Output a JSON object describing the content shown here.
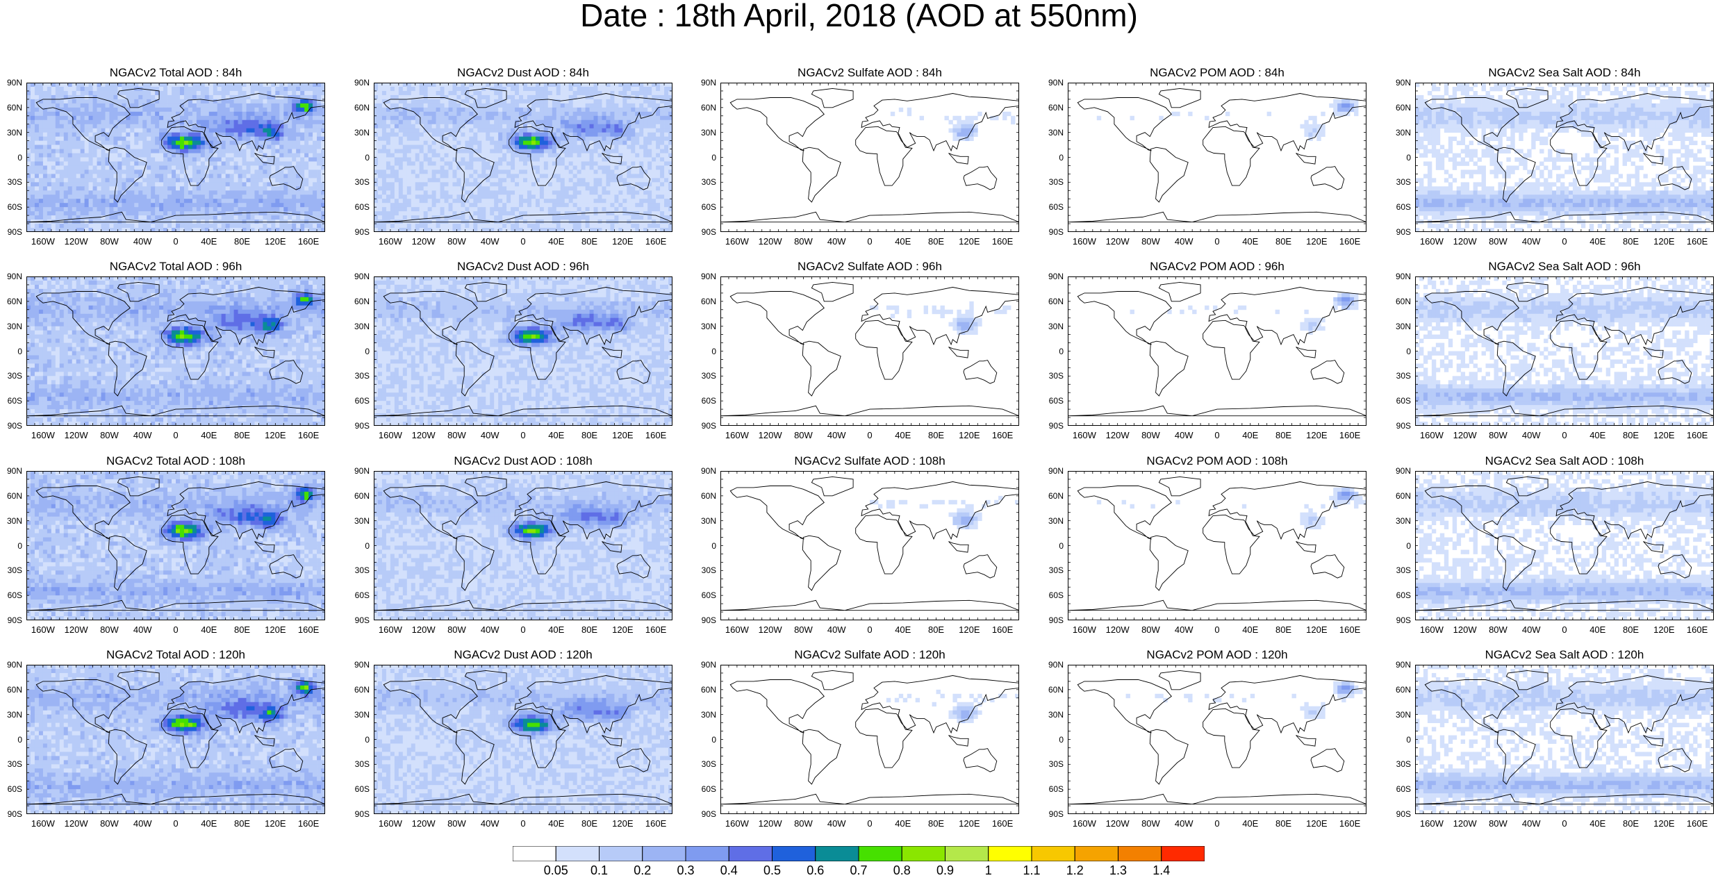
{
  "title": "Date : 18th April, 2018 (AOD at 550nm)",
  "lat_ticks": [
    "90N",
    "60N",
    "30N",
    "0",
    "30S",
    "60S",
    "90S"
  ],
  "lon_ticks": [
    "160W",
    "120W",
    "80W",
    "40W",
    "0",
    "40E",
    "80E",
    "120E",
    "160E"
  ],
  "colors": {
    "land_outline": "#000000",
    "levels": [
      "#ffffff",
      "#d3e0fc",
      "#b7cbf8",
      "#9cb4f4",
      "#7f9bf0",
      "#5f6ee6",
      "#1f61dc",
      "#0a8c96",
      "#46e000",
      "#8ae600",
      "#b4e84a",
      "#ffff00",
      "#f7c800",
      "#f5a300",
      "#f38000",
      "#ff2a00"
    ]
  },
  "rows": [
    {
      "hour": "84h",
      "panels": [
        {
          "title": "NGACv2 Total AOD : 84h",
          "type": "total"
        },
        {
          "title": "NGACv2 Dust AOD : 84h",
          "type": "dust"
        },
        {
          "title": "NGACv2 Sulfate AOD : 84h",
          "type": "sulfate"
        },
        {
          "title": "NGACv2 POM AOD : 84h",
          "type": "pom"
        },
        {
          "title": "NGACv2 Sea Salt AOD : 84h",
          "type": "seasalt"
        }
      ]
    },
    {
      "hour": "96h",
      "panels": [
        {
          "title": "NGACv2 Total AOD : 96h",
          "type": "total"
        },
        {
          "title": "NGACv2 Dust AOD : 96h",
          "type": "dust"
        },
        {
          "title": "NGACv2 Sulfate AOD : 96h",
          "type": "sulfate"
        },
        {
          "title": "NGACv2 POM AOD : 96h",
          "type": "pom"
        },
        {
          "title": "NGACv2 Sea Salt AOD : 96h",
          "type": "seasalt"
        }
      ]
    },
    {
      "hour": "108h",
      "panels": [
        {
          "title": "NGACv2 Total AOD : 108h",
          "type": "total"
        },
        {
          "title": "NGACv2 Dust AOD : 108h",
          "type": "dust"
        },
        {
          "title": "NGACv2 Sulfate AOD : 108h",
          "type": "sulfate"
        },
        {
          "title": "NGACv2 POM AOD : 108h",
          "type": "pom"
        },
        {
          "title": "NGACv2 Sea Salt AOD : 108h",
          "type": "seasalt"
        }
      ]
    },
    {
      "hour": "120h",
      "panels": [
        {
          "title": "NGACv2 Total AOD : 120h",
          "type": "total"
        },
        {
          "title": "NGACv2 Dust AOD : 120h",
          "type": "dust"
        },
        {
          "title": "NGACv2 Sulfate AOD : 120h",
          "type": "sulfate"
        },
        {
          "title": "NGACv2 POM AOD : 120h",
          "type": "pom"
        },
        {
          "title": "NGACv2 Sea Salt  AOD : 120h",
          "type": "seasalt"
        }
      ]
    }
  ],
  "colorbar": {
    "labels": [
      "0.05",
      "0.1",
      "0.2",
      "0.3",
      "0.4",
      "0.5",
      "0.6",
      "0.7",
      "0.8",
      "0.9",
      "1",
      "1.1",
      "1.2",
      "1.3",
      "1.4"
    ]
  }
}
